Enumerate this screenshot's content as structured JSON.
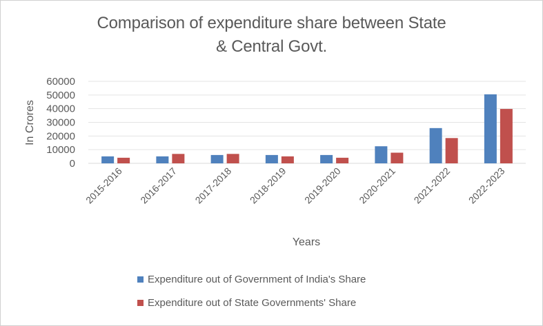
{
  "chart_data": {
    "type": "bar",
    "title_line1": "Comparison of expenditure share between State",
    "title_line2": "& Central Govt.",
    "xlabel": "Years",
    "ylabel": "In Crores",
    "ylim": [
      0,
      60000
    ],
    "yticks": [
      "0",
      "10000",
      "20000",
      "30000",
      "40000",
      "50000",
      "60000"
    ],
    "ytick_values": [
      0,
      10000,
      20000,
      30000,
      40000,
      50000,
      60000
    ],
    "grid": true,
    "legend_position": "bottom",
    "categories": [
      "2015-2016",
      "2016-2017",
      "2017-2018",
      "2018-2019",
      "2019-2020",
      "2020-2021",
      "2021-2022",
      "2022-2023"
    ],
    "series": [
      {
        "name": "Expenditure out of Government of India's Share",
        "color": "#4f81bd",
        "values": [
          5100,
          5100,
          6100,
          6100,
          6100,
          12500,
          25800,
          50500
        ]
      },
      {
        "name": "Expenditure out of State Governments' Share",
        "color": "#c0504d",
        "values": [
          4100,
          6900,
          6900,
          5100,
          4100,
          7800,
          18500,
          39800
        ]
      }
    ]
  }
}
